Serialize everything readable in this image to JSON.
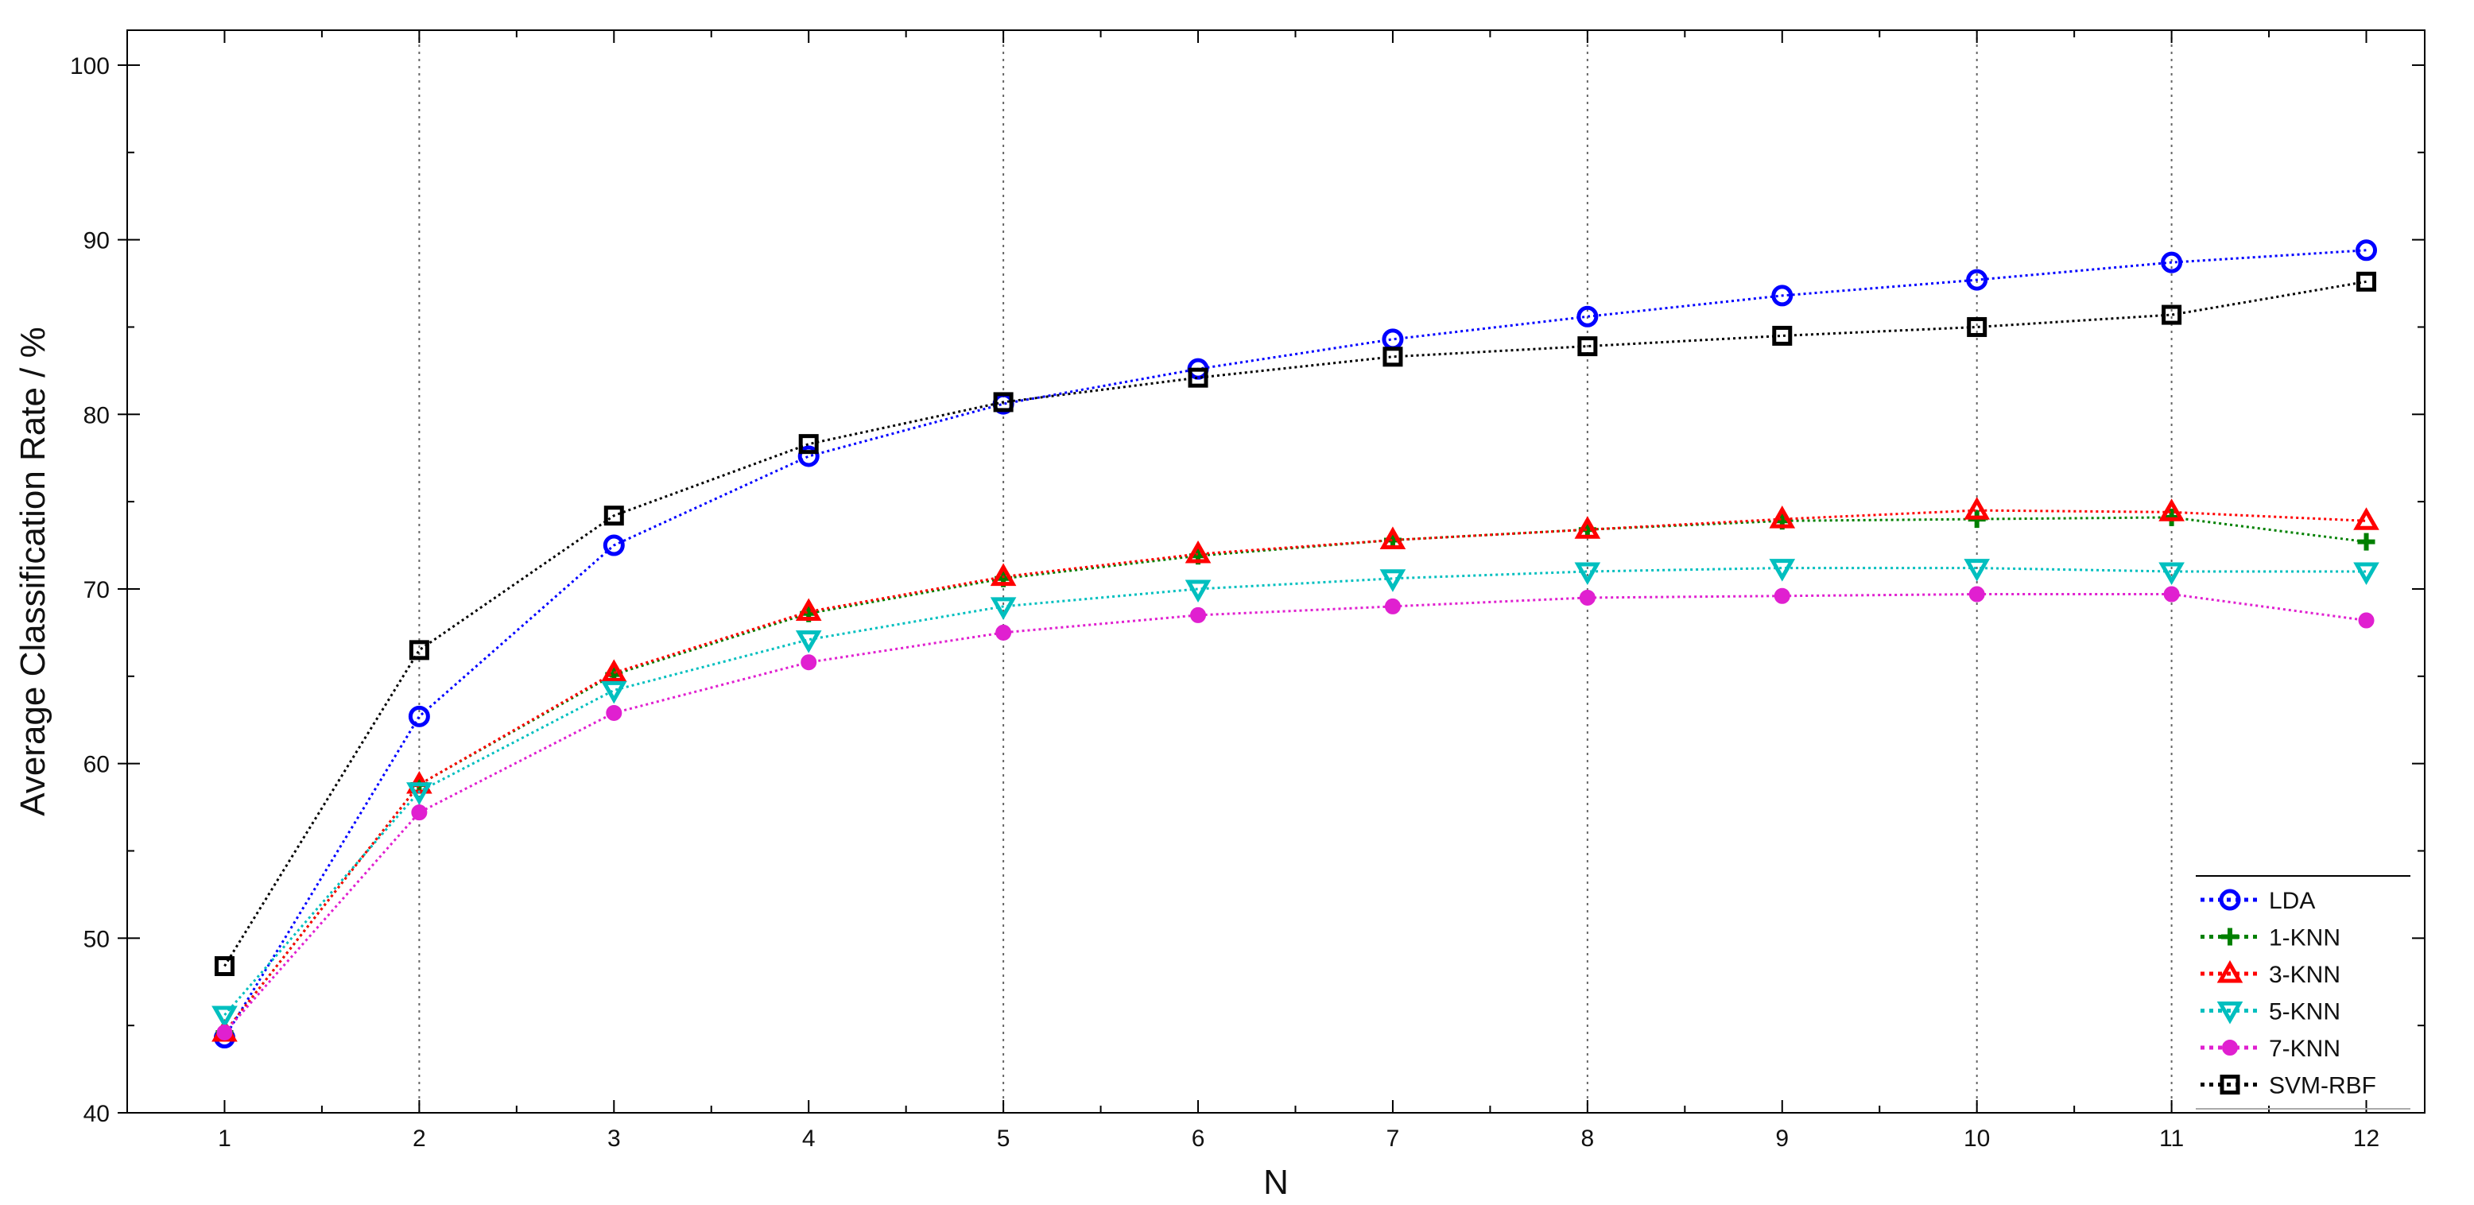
{
  "chart_data": {
    "type": "line",
    "title": "",
    "xlabel": "N",
    "ylabel": "Average Classification Rate / %",
    "x": [
      1,
      2,
      3,
      4,
      5,
      6,
      7,
      8,
      9,
      10,
      11,
      12
    ],
    "xticks": [
      "1",
      "2",
      "3",
      "4",
      "5",
      "6",
      "7",
      "8",
      "9",
      "10",
      "11",
      "12"
    ],
    "xlim": [
      0.5,
      12.3
    ],
    "ylim": [
      40,
      102
    ],
    "yticks": [
      "40",
      "50",
      "60",
      "70",
      "80",
      "90",
      "100"
    ],
    "grid": "vertical dotted lines at 2, 5, 8, 10, 11",
    "legend_position": "bottom-right",
    "series": [
      {
        "name": "LDA",
        "color": "#0000ff",
        "marker": "circle",
        "values": [
          44.3,
          62.7,
          72.5,
          77.6,
          80.6,
          82.6,
          84.3,
          85.6,
          86.8,
          87.7,
          88.7,
          89.4
        ]
      },
      {
        "name": "1-KNN",
        "color": "#008000",
        "marker": "plus",
        "values": [
          44.6,
          58.8,
          65.1,
          68.6,
          70.6,
          71.9,
          72.8,
          73.4,
          73.9,
          74.0,
          74.1,
          72.7
        ]
      },
      {
        "name": "3-KNN",
        "color": "#ff0000",
        "marker": "triangle-up",
        "values": [
          44.6,
          58.8,
          65.2,
          68.7,
          70.7,
          72.0,
          72.8,
          73.4,
          74.0,
          74.5,
          74.4,
          73.9
        ]
      },
      {
        "name": "5-KNN",
        "color": "#00bfbf",
        "marker": "triangle-down",
        "values": [
          45.6,
          58.4,
          64.2,
          67.1,
          69.0,
          70.0,
          70.6,
          71.0,
          71.2,
          71.2,
          71.0,
          71.0
        ]
      },
      {
        "name": "7-KNN",
        "color": "#e020d0",
        "marker": "dot",
        "values": [
          44.6,
          57.2,
          62.9,
          65.8,
          67.5,
          68.5,
          69.0,
          69.5,
          69.6,
          69.7,
          69.7,
          68.2
        ]
      },
      {
        "name": "SVM-RBF",
        "color": "#000000",
        "marker": "square",
        "values": [
          48.4,
          66.5,
          74.2,
          78.3,
          80.7,
          82.1,
          83.3,
          83.9,
          84.5,
          85.0,
          85.7,
          87.6
        ]
      }
    ]
  }
}
